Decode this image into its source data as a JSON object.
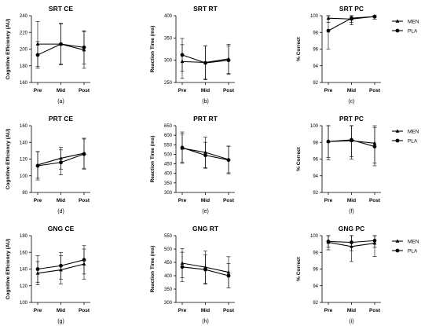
{
  "chart_data": [
    {
      "type": "line",
      "title": "SRT CE",
      "ylabel": "Cognitive Efficiency (AU)",
      "subcaption": "(a)",
      "categories": [
        "Pre",
        "Mid",
        "Post"
      ],
      "ylim": [
        160,
        240
      ],
      "yticks": [
        160,
        180,
        200,
        220,
        240
      ],
      "series": [
        {
          "name": "MEN",
          "marker": "triangle",
          "values": [
            206,
            206,
            199
          ],
          "errors": [
            27,
            24,
            22
          ]
        },
        {
          "name": "PLA",
          "marker": "circle",
          "values": [
            193,
            206,
            202
          ],
          "errors": [
            16,
            25,
            20
          ]
        }
      ],
      "legend": false
    },
    {
      "type": "line",
      "title": "SRT RT",
      "ylabel": "Reaction Time (ms)",
      "subcaption": "(b)",
      "categories": [
        "Pre",
        "Mid",
        "Post"
      ],
      "ylim": [
        250,
        400
      ],
      "yticks": [
        250,
        300,
        350,
        400
      ],
      "series": [
        {
          "name": "MEN",
          "marker": "triangle",
          "values": [
            297,
            295,
            303
          ],
          "errors": [
            38,
            37,
            33
          ]
        },
        {
          "name": "PLA",
          "marker": "circle",
          "values": [
            312,
            294,
            300
          ],
          "errors": [
            37,
            38,
            32
          ]
        }
      ],
      "legend": false
    },
    {
      "type": "line",
      "title": "SRT PC",
      "ylabel": "% Correct",
      "subcaption": "(c)",
      "categories": [
        "Pre",
        "Mid",
        "Post"
      ],
      "ylim": [
        92,
        100
      ],
      "yticks": [
        92,
        94,
        96,
        98,
        100
      ],
      "series": [
        {
          "name": "MEN",
          "marker": "triangle",
          "values": [
            99.7,
            99.6,
            99.9
          ],
          "errors": [
            0.5,
            0.7,
            0.3
          ]
        },
        {
          "name": "PLA",
          "marker": "circle",
          "values": [
            98.2,
            99.7,
            99.9
          ],
          "errors": [
            2.2,
            0.5,
            0.3
          ]
        }
      ],
      "legend": true
    },
    {
      "type": "line",
      "title": "PRT CE",
      "ylabel": "Cognitive Efficiency (AU)",
      "subcaption": "(d)",
      "categories": [
        "Pre",
        "Mid",
        "Post"
      ],
      "ylim": [
        80,
        160
      ],
      "yticks": [
        80,
        100,
        120,
        140,
        160
      ],
      "series": [
        {
          "name": "MEN",
          "marker": "triangle",
          "values": [
            113,
            121,
            127
          ],
          "errors": [
            16,
            13,
            18
          ]
        },
        {
          "name": "PLA",
          "marker": "circle",
          "values": [
            112,
            116,
            126
          ],
          "errors": [
            17,
            15,
            18
          ]
        }
      ],
      "legend": false
    },
    {
      "type": "line",
      "title": "PRT RT",
      "ylabel": "Reaction Time (ms)",
      "subcaption": "(e)",
      "categories": [
        "Pre",
        "Mid",
        "Post"
      ],
      "ylim": [
        300,
        650
      ],
      "yticks": [
        300,
        350,
        400,
        450,
        500,
        550,
        600,
        650
      ],
      "series": [
        {
          "name": "MEN",
          "marker": "triangle",
          "values": [
            532,
            510,
            473
          ],
          "errors": [
            75,
            80,
            70
          ]
        },
        {
          "name": "PLA",
          "marker": "circle",
          "values": [
            535,
            495,
            470
          ],
          "errors": [
            82,
            68,
            72
          ]
        }
      ],
      "legend": false
    },
    {
      "type": "line",
      "title": "PRT PC",
      "ylabel": "% Correct",
      "subcaption": "(f)",
      "categories": [
        "Pre",
        "Mid",
        "Post"
      ],
      "ylim": [
        92,
        100
      ],
      "yticks": [
        92,
        94,
        96,
        98,
        100
      ],
      "series": [
        {
          "name": "MEN",
          "marker": "triangle",
          "values": [
            98.1,
            98.2,
            97.9
          ],
          "errors": [
            1.9,
            2.2,
            2.4
          ]
        },
        {
          "name": "PLA",
          "marker": "circle",
          "values": [
            98.1,
            98.3,
            97.5
          ],
          "errors": [
            2.2,
            2.0,
            2.3
          ]
        }
      ],
      "legend": true
    },
    {
      "type": "line",
      "title": "GNG CE",
      "ylabel": "Cognitive Efficiency (AU)",
      "subcaption": "(g)",
      "categories": [
        "Pre",
        "Mid",
        "Post"
      ],
      "ylim": [
        100,
        180
      ],
      "yticks": [
        100,
        120,
        140,
        160,
        180
      ],
      "series": [
        {
          "name": "MEN",
          "marker": "triangle",
          "values": [
            135,
            139,
            146
          ],
          "errors": [
            14,
            17,
            18
          ]
        },
        {
          "name": "PLA",
          "marker": "circle",
          "values": [
            140,
            144,
            151
          ],
          "errors": [
            16,
            16,
            17
          ]
        }
      ],
      "legend": false
    },
    {
      "type": "line",
      "title": "GNG RT",
      "ylabel": "Reaction Time (ms)",
      "subcaption": "(h)",
      "categories": [
        "Pre",
        "Mid",
        "Post"
      ],
      "ylim": [
        300,
        550
      ],
      "yticks": [
        300,
        350,
        400,
        450,
        500,
        550
      ],
      "series": [
        {
          "name": "MEN",
          "marker": "triangle",
          "values": [
            447,
            432,
            413
          ],
          "errors": [
            55,
            60,
            58
          ]
        },
        {
          "name": "PLA",
          "marker": "circle",
          "values": [
            433,
            423,
            400
          ],
          "errors": [
            55,
            55,
            45
          ]
        }
      ],
      "legend": false
    },
    {
      "type": "line",
      "title": "GNG PC",
      "ylabel": "% Correct",
      "subcaption": "(i)",
      "categories": [
        "Pre",
        "Mid",
        "Post"
      ],
      "ylim": [
        92,
        100
      ],
      "yticks": [
        92,
        94,
        96,
        98,
        100
      ],
      "series": [
        {
          "name": "MEN",
          "marker": "triangle",
          "values": [
            99.2,
            98.7,
            99.1
          ],
          "errors": [
            0.9,
            1.8,
            1.6
          ]
        },
        {
          "name": "PLA",
          "marker": "circle",
          "values": [
            99.3,
            99.2,
            99.4
          ],
          "errors": [
            0.7,
            1.0,
            0.8
          ]
        }
      ],
      "legend": true
    }
  ]
}
